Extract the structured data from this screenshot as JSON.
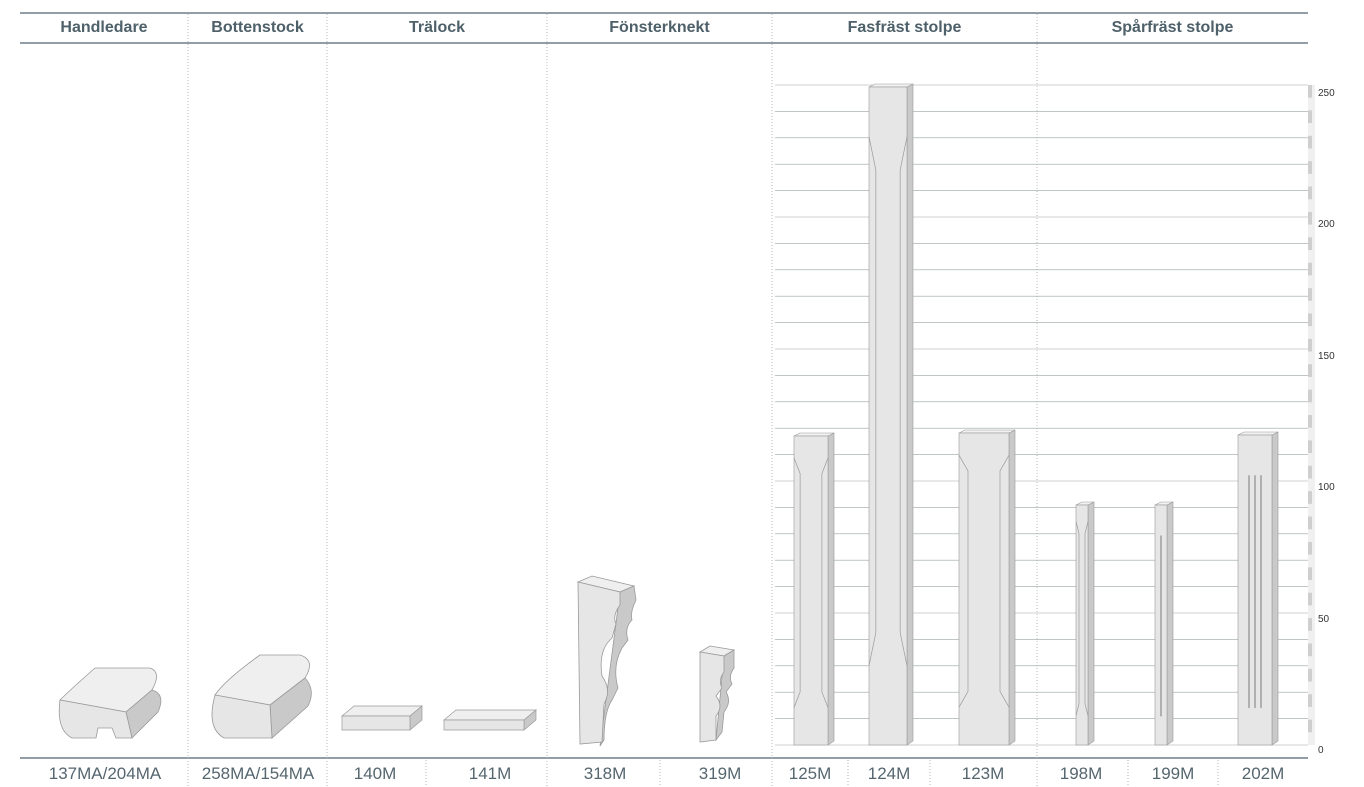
{
  "categories": [
    {
      "label": "Handledare"
    },
    {
      "label": "Bottenstock"
    },
    {
      "label": "Trälock"
    },
    {
      "label": "Fönsterknekt"
    },
    {
      "label": "Fasfräst stolpe"
    },
    {
      "label": "Spårfräst stolpe"
    }
  ],
  "products": [
    {
      "label": "137MA/204MA",
      "category": "Handledare"
    },
    {
      "label": "258MA/154MA",
      "category": "Bottenstock"
    },
    {
      "label": "140M",
      "category": "Trälock"
    },
    {
      "label": "141M",
      "category": "Trälock"
    },
    {
      "label": "318M",
      "category": "Fönsterknekt"
    },
    {
      "label": "319M",
      "category": "Fönsterknekt"
    },
    {
      "label": "125M",
      "category": "Fasfräst stolpe"
    },
    {
      "label": "124M",
      "category": "Fasfräst stolpe"
    },
    {
      "label": "123M",
      "category": "Fasfräst stolpe"
    },
    {
      "label": "198M",
      "category": "Spårfräst stolpe"
    },
    {
      "label": "199M",
      "category": "Spårfräst stolpe"
    },
    {
      "label": "202M",
      "category": "Spårfräst stolpe"
    }
  ],
  "scale": {
    "ticks": [
      "250",
      "200",
      "150",
      "100",
      "50",
      "0"
    ],
    "range": [
      0,
      250
    ]
  },
  "colors": {
    "header_text": "#4e6069",
    "rule": "#6f7f88",
    "piece_fill": "#e6e6e6",
    "piece_shade": "#c9c9c9",
    "piece_edge": "#9a9a9a",
    "grid": "#9aa3a8"
  }
}
